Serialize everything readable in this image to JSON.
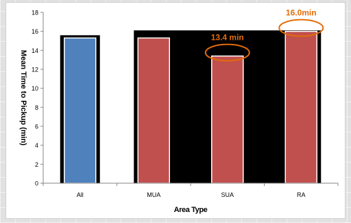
{
  "chart_data": {
    "type": "bar",
    "categories": [
      "All",
      "MUA",
      "SUA",
      "RA"
    ],
    "values": [
      15.3,
      15.3,
      13.4,
      16.0
    ],
    "colors": [
      "#4f81bd",
      "#c0504d",
      "#c0504d",
      "#c0504d"
    ],
    "title": "",
    "xlabel": "Area Type",
    "ylabel": "Mean Time to Pickup (min)",
    "ylim": [
      0,
      18
    ],
    "yticks": [
      0,
      2,
      4,
      6,
      8,
      10,
      12,
      14,
      16,
      18
    ],
    "grid": false,
    "legend": "none",
    "annotations": [
      {
        "category": "SUA",
        "text": "13.4 min",
        "color": "#e36c0a"
      },
      {
        "category": "RA",
        "text": "16.0min",
        "color": "#e36c0a"
      }
    ]
  }
}
